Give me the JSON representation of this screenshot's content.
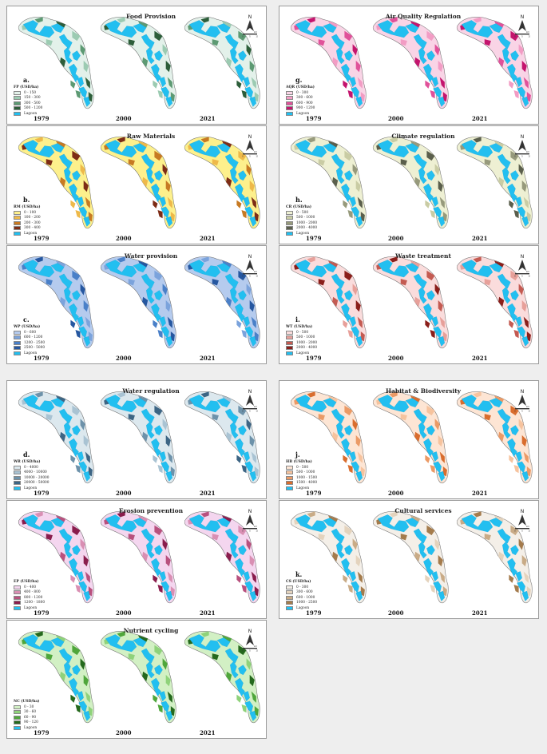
{
  "years": [
    "1979",
    "2000",
    "2021"
  ],
  "north_label": "N",
  "scale": {
    "unit": "km",
    "ticks": [
      "0",
      "5",
      "10"
    ]
  },
  "lagoon_color": "#22bff0",
  "panels": [
    {
      "id": "a",
      "letter": "a.",
      "title": "Food Provision",
      "legend_title": "FP (USD/ha)",
      "classes": [
        {
          "label": "0 - 150",
          "color": "#e3f1ea"
        },
        {
          "label": "150 - 300",
          "color": "#9ccbb2"
        },
        {
          "label": "300 - 500",
          "color": "#5d9a73"
        },
        {
          "label": "500 - 1200",
          "color": "#2d5e3a"
        },
        {
          "label": "Lagoon",
          "color": "#22bff0"
        }
      ]
    },
    {
      "id": "g",
      "letter": "g.",
      "title": "Air Quality Regulation",
      "legend_title": "AQR (USD/ha)",
      "classes": [
        {
          "label": "0 - 300",
          "color": "#f9d4e6"
        },
        {
          "label": "300 - 600",
          "color": "#f29cc4"
        },
        {
          "label": "600 - 900",
          "color": "#e0529a"
        },
        {
          "label": "900 - 1200",
          "color": "#c4156e"
        },
        {
          "label": "Lagoon",
          "color": "#22bff0"
        }
      ]
    },
    {
      "id": "b",
      "letter": "b.",
      "title": "Raw Materials",
      "legend_title": "RM (USD/ha)",
      "classes": [
        {
          "label": "0 - 100",
          "color": "#fdf08c"
        },
        {
          "label": "100 - 200",
          "color": "#eeb94a"
        },
        {
          "label": "200 - 300",
          "color": "#c77a23"
        },
        {
          "label": "300 - 400",
          "color": "#7d2c16"
        },
        {
          "label": "Lagoon",
          "color": "#22bff0"
        }
      ]
    },
    {
      "id": "h",
      "letter": "h.",
      "title": "Climate regulation",
      "legend_title": "CR (USD/ha)",
      "classes": [
        {
          "label": "0 - 500",
          "color": "#eef0d3"
        },
        {
          "label": "500 - 1000",
          "color": "#c9cca4"
        },
        {
          "label": "1000 - 2000",
          "color": "#979a7c"
        },
        {
          "label": "2000 - 4000",
          "color": "#5b5f4c"
        },
        {
          "label": "Lagoon",
          "color": "#22bff0"
        }
      ]
    },
    {
      "id": "c",
      "letter": "c.",
      "title": "Water provision",
      "legend_title": "WP (USD/ha)",
      "classes": [
        {
          "label": "0 - 600",
          "color": "#b5cbee"
        },
        {
          "label": "600 - 1200",
          "color": "#7ba3dc"
        },
        {
          "label": "1200 - 2500",
          "color": "#4a80c8"
        },
        {
          "label": "2500 - 5000",
          "color": "#2657a0"
        },
        {
          "label": "Lagoon",
          "color": "#22bff0"
        }
      ]
    },
    {
      "id": "i",
      "letter": "i.",
      "title": "Waste treatment",
      "legend_title": "WT (USD/ha)",
      "classes": [
        {
          "label": "0 - 500",
          "color": "#fadcdc"
        },
        {
          "label": "500 - 1000",
          "color": "#e7a09a"
        },
        {
          "label": "1000 - 2000",
          "color": "#c45b52"
        },
        {
          "label": "2000 - 4000",
          "color": "#8a1f1b"
        },
        {
          "label": "Lagoon",
          "color": "#22bff0"
        }
      ]
    },
    {
      "id": "d",
      "letter": "d.",
      "title": "Water regulation",
      "legend_title": "WR (USD/ha)",
      "classes": [
        {
          "label": "0 - 4000",
          "color": "#dce8ee"
        },
        {
          "label": "4000 - 10000",
          "color": "#a9c3d3"
        },
        {
          "label": "10000 - 20000",
          "color": "#6d92aa"
        },
        {
          "label": "20000 - 50000",
          "color": "#3d6584"
        },
        {
          "label": "Lagoon",
          "color": "#22bff0"
        }
      ]
    },
    {
      "id": "j",
      "letter": "j.",
      "title": "Habitat & Biodiversity",
      "legend_title": "HB (USD/ha)",
      "classes": [
        {
          "label": "0 - 500",
          "color": "#fde5d4"
        },
        {
          "label": "500 - 1000",
          "color": "#f6c39e"
        },
        {
          "label": "1000 - 1500",
          "color": "#eb9a66"
        },
        {
          "label": "1500 - 4000",
          "color": "#d96d2e"
        },
        {
          "label": "Lagoon",
          "color": "#22bff0"
        }
      ]
    },
    {
      "id": "e",
      "letter": "",
      "title": "Erosion prevention",
      "legend_title": "EP (USD/ha)",
      "classes": [
        {
          "label": "0 - 400",
          "color": "#f4d6ef"
        },
        {
          "label": "400 - 800",
          "color": "#d98fb3"
        },
        {
          "label": "800 - 1200",
          "color": "#b8517e"
        },
        {
          "label": "1200 - 1800",
          "color": "#8a1d4d"
        },
        {
          "label": "Lagoon",
          "color": "#22bff0"
        }
      ]
    },
    {
      "id": "k",
      "letter": "k.",
      "title": "Cultural services",
      "legend_title": "CS (USD/ha)",
      "classes": [
        {
          "label": "0 - 300",
          "color": "#f4efe8"
        },
        {
          "label": "300 - 600",
          "color": "#e4d3bd"
        },
        {
          "label": "600 - 1000",
          "color": "#c9ab86"
        },
        {
          "label": "1000 - 2500",
          "color": "#a47b4c"
        },
        {
          "label": "Lagoon",
          "color": "#22bff0"
        }
      ]
    },
    {
      "id": "f",
      "letter": "",
      "title": "Nutrient cycling",
      "legend_title": "NC (USD/ha)",
      "classes": [
        {
          "label": "0 - 30",
          "color": "#d2f0c4"
        },
        {
          "label": "30 - 60",
          "color": "#8fd27a"
        },
        {
          "label": "60 - 90",
          "color": "#4fa63b"
        },
        {
          "label": "90 - 120",
          "color": "#25691d"
        },
        {
          "label": "Lagoon",
          "color": "#22bff0"
        }
      ]
    }
  ]
}
